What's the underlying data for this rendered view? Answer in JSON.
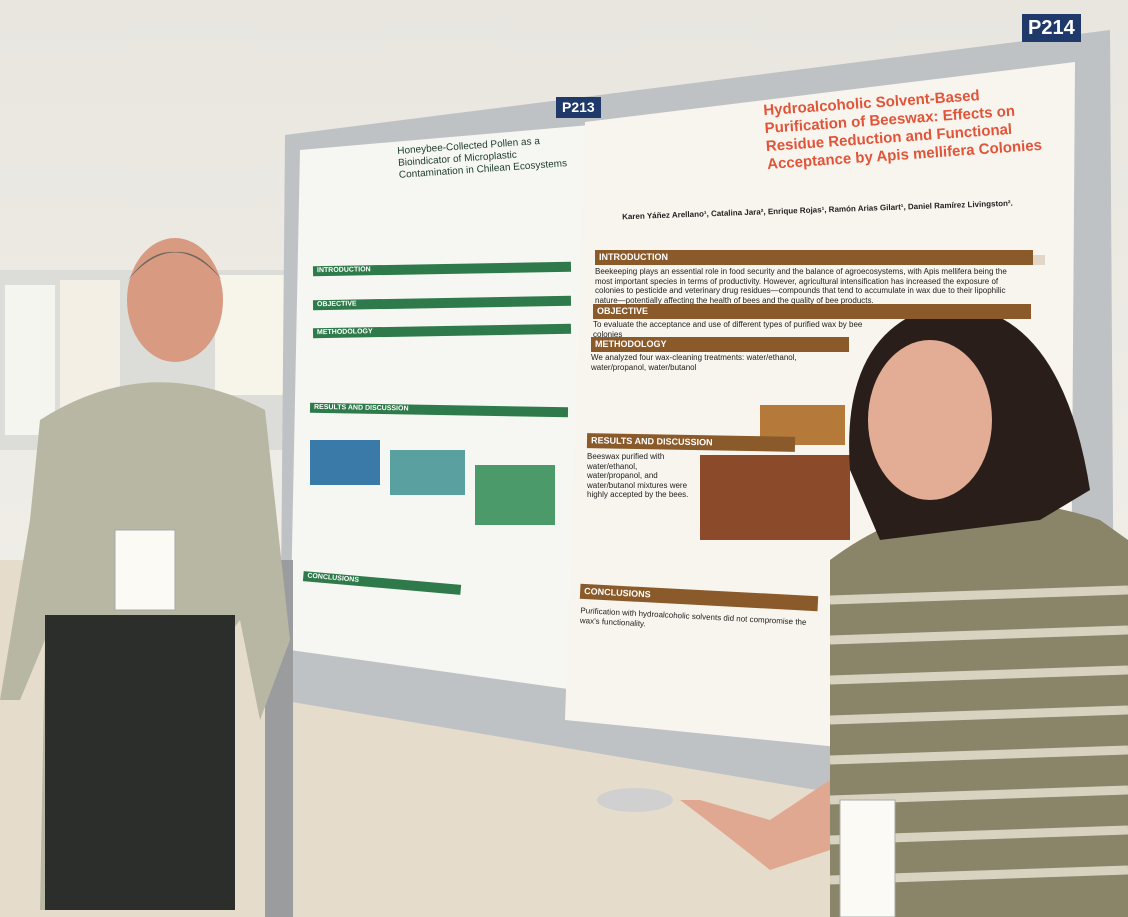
{
  "signs": {
    "left": "P213",
    "right": "P214"
  },
  "poster_left": {
    "title": "Honeybee-Collected Pollen as a Bioindicator of Microplastic Contamination in Chilean Ecosystems",
    "sections": [
      "INTRODUCTION",
      "OBJECTIVE",
      "METHODOLOGY",
      "RESULTS AND DISCUSSION",
      "CONCLUSIONS"
    ]
  },
  "poster_right": {
    "title": "Hydroalcoholic Solvent-Based Purification of Beeswax: Effects on Residue Reduction and Functional Acceptance by Apis mellifera Colonies",
    "authors": "Karen Yáñez Arellano¹, Catalina Jara², Enrique Rojas¹, Ramón Arias Gilart¹, Daniel Ramírez Livingston².",
    "sections": [
      {
        "heading": "INTRODUCTION",
        "text": "Beekeeping plays an essential role in food security and the balance of agroecosystems, with Apis mellifera being the most important species in terms of productivity. However, agricultural intensification has increased the exposure of colonies to pesticide and veterinary drug residues—compounds that tend to accumulate in wax due to their lipophilic nature—potentially affecting the health of bees and the quality of bee products."
      },
      {
        "heading": "OBJECTIVE",
        "text": "To evaluate the acceptance and use of different types of purified wax by bee colonies"
      },
      {
        "heading": "METHODOLOGY",
        "text": "We analyzed four wax-cleaning treatments: water/ethanol, water/propanol, water/butanol"
      },
      {
        "heading": "RESULTS AND DISCUSSION",
        "text": "Beeswax purified with water/ethanol, water/propanol, and water/butanol mixtures were highly accepted by the bees."
      },
      {
        "heading": "CONCLUSIONS",
        "text": "Purification with hydroalcoholic solvents did not compromise the wax's functionality."
      }
    ]
  }
}
